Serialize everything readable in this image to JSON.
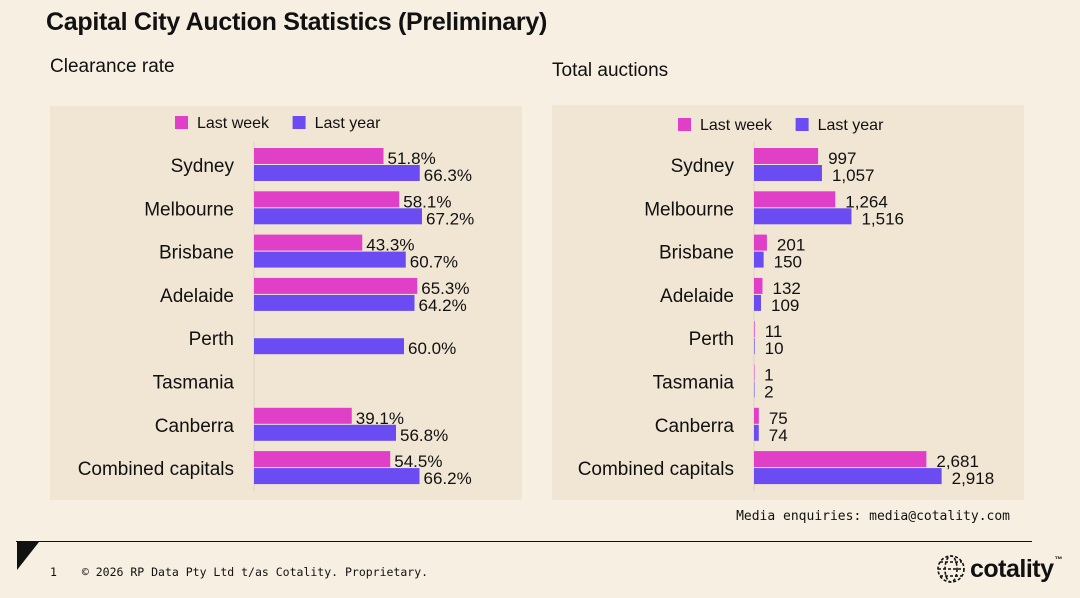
{
  "page": {
    "title": "Capital City Auction Statistics (Preliminary)",
    "media_enquiries": "Media enquiries: media@cotality.com",
    "footer": {
      "page_number": "1",
      "copyright": "© 2026 RP Data Pty Ltd t/as Cotality. Proprietary."
    },
    "logo": {
      "text": "cotality",
      "mark": "™"
    }
  },
  "colors": {
    "last_week": "#e040c8",
    "last_year": "#6a4cf2",
    "panel_bg": "#f0e6d3",
    "page_bg": "#f6efe2"
  },
  "chart_data": [
    {
      "type": "bar",
      "orientation": "horizontal",
      "title": "Clearance rate",
      "categories": [
        "Sydney",
        "Melbourne",
        "Brisbane",
        "Adelaide",
        "Perth",
        "Tasmania",
        "Canberra",
        "Combined capitals"
      ],
      "series": [
        {
          "name": "Last week",
          "values": [
            51.8,
            58.1,
            43.3,
            65.3,
            null,
            null,
            39.1,
            54.5
          ],
          "labels": [
            "51.8%",
            "58.1%",
            "43.3%",
            "65.3%",
            "",
            "",
            "39.1%",
            "54.5%"
          ]
        },
        {
          "name": "Last year",
          "values": [
            66.3,
            67.2,
            60.7,
            64.2,
            60.0,
            null,
            56.8,
            66.2
          ],
          "labels": [
            "66.3%",
            "67.2%",
            "60.7%",
            "64.2%",
            "60.0%",
            "",
            "56.8%",
            "66.2%"
          ]
        }
      ],
      "xlim": [
        0,
        80
      ],
      "legend": "top-center",
      "grid": false
    },
    {
      "type": "bar",
      "orientation": "horizontal",
      "title": "Total auctions",
      "categories": [
        "Sydney",
        "Melbourne",
        "Brisbane",
        "Adelaide",
        "Perth",
        "Tasmania",
        "Canberra",
        "Combined capitals"
      ],
      "series": [
        {
          "name": "Last week",
          "values": [
            997,
            1264,
            201,
            132,
            11,
            1,
            75,
            2681
          ],
          "labels": [
            "997",
            "1,264",
            "201",
            "132",
            "11",
            "1",
            "75",
            "2,681"
          ]
        },
        {
          "name": "Last year",
          "values": [
            1057,
            1516,
            150,
            109,
            10,
            2,
            74,
            2918
          ],
          "labels": [
            "1,057",
            "1,516",
            "150",
            "109",
            "10",
            "2",
            "74",
            "2,918"
          ]
        }
      ],
      "xlim": [
        0,
        3500
      ],
      "legend": "top-center",
      "grid": false
    }
  ]
}
